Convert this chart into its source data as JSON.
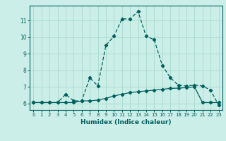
{
  "title": "",
  "xlabel": "Humidex (Indice chaleur)",
  "ylabel": "",
  "bg_color": "#cceee8",
  "grid_color": "#aaddcc",
  "line_color": "#006060",
  "xlim": [
    -0.5,
    23.5
  ],
  "ylim": [
    5.6,
    11.9
  ],
  "xticks": [
    0,
    1,
    2,
    3,
    4,
    5,
    6,
    7,
    8,
    9,
    10,
    11,
    12,
    13,
    14,
    15,
    16,
    17,
    18,
    19,
    20,
    21,
    22,
    23
  ],
  "yticks": [
    6,
    7,
    8,
    9,
    10,
    11
  ],
  "curve1_x": [
    0,
    1,
    2,
    3,
    4,
    5,
    6,
    7,
    8,
    9,
    10,
    11,
    12,
    13,
    14,
    15,
    16,
    17,
    18,
    19,
    20,
    21,
    22,
    23
  ],
  "curve1_y": [
    6.05,
    6.05,
    6.05,
    6.05,
    6.55,
    6.15,
    6.15,
    7.55,
    7.05,
    9.5,
    10.05,
    11.1,
    11.1,
    11.55,
    10.05,
    9.85,
    8.3,
    7.55,
    7.1,
    7.05,
    7.1,
    7.05,
    6.8,
    5.9
  ],
  "curve2_x": [
    0,
    1,
    2,
    3,
    4,
    5,
    6,
    7,
    8,
    9,
    10,
    11,
    12,
    13,
    14,
    15,
    16,
    17,
    18,
    19,
    20,
    21,
    22,
    23
  ],
  "curve2_y": [
    6.05,
    6.05,
    6.05,
    6.05,
    6.05,
    6.05,
    6.15,
    6.15,
    6.2,
    6.3,
    6.45,
    6.55,
    6.65,
    6.7,
    6.75,
    6.8,
    6.85,
    6.9,
    6.92,
    6.95,
    7.0,
    6.05,
    6.05,
    6.05
  ]
}
